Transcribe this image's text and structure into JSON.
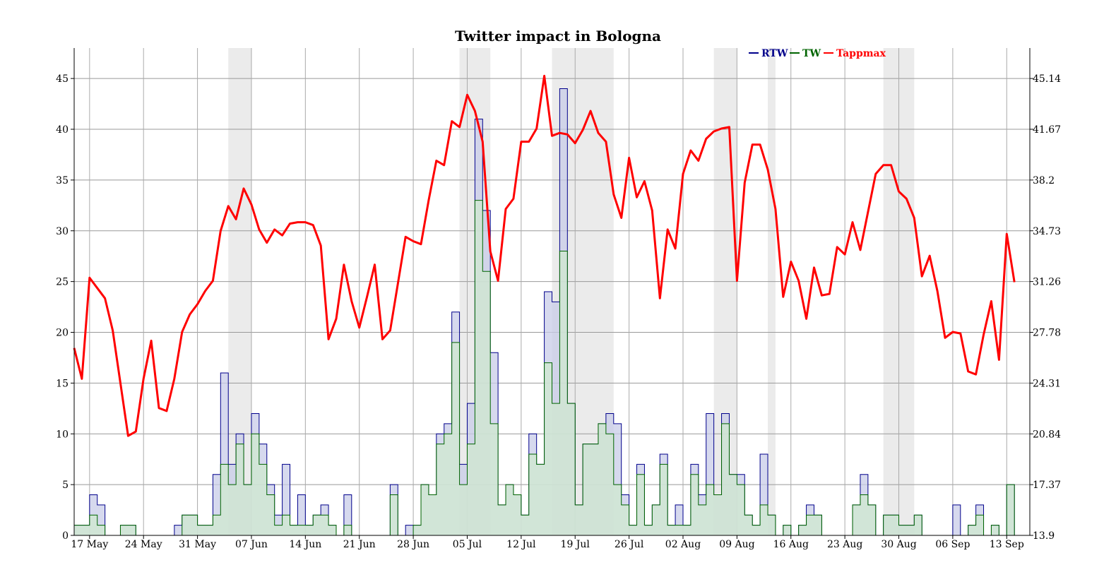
{
  "chart_data": {
    "type": "line",
    "title": "Twitter impact in Bologna",
    "x_tick_labels": [
      "17 May",
      "24 May",
      "31 May",
      "07 Jun",
      "14 Jun",
      "21 Jun",
      "28 Jun",
      "05 Jul",
      "12 Jul",
      "19 Jul",
      "26 Jul",
      "02 Aug",
      "09 Aug",
      "16 Aug",
      "23 Aug",
      "30 Aug",
      "06 Sep",
      "13 Sep"
    ],
    "x_start": "15 May",
    "y_left_ticks": [
      0,
      5,
      10,
      15,
      20,
      25,
      30,
      35,
      40,
      45
    ],
    "y_left_lim": [
      0,
      48
    ],
    "y_right_ticks": [
      "13.9",
      "17.37",
      "20.84",
      "24.31",
      "27.78",
      "31.26",
      "34.73",
      "38.2",
      "41.67",
      "45.14"
    ],
    "grid": true,
    "legend_position": "top-right",
    "shaded_day_ranges": [
      [
        20,
        23
      ],
      [
        50,
        54
      ],
      [
        62,
        70
      ],
      [
        83,
        86
      ],
      [
        90,
        91
      ],
      [
        105,
        109
      ]
    ],
    "series": [
      {
        "name": "RTW",
        "color": "#00008b",
        "values": [
          1,
          1,
          4,
          3,
          0,
          0,
          1,
          1,
          0,
          0,
          0,
          0,
          0,
          1,
          2,
          2,
          1,
          1,
          6,
          16,
          7,
          10,
          5,
          12,
          9,
          5,
          2,
          7,
          1,
          4,
          1,
          2,
          3,
          1,
          0,
          4,
          0,
          0,
          0,
          0,
          0,
          5,
          0,
          1,
          1,
          5,
          4,
          10,
          11,
          22,
          7,
          13,
          41,
          32,
          18,
          3,
          5,
          4,
          2,
          10,
          7,
          24,
          23,
          44,
          13,
          3,
          9,
          9,
          11,
          12,
          11,
          4,
          1,
          7,
          1,
          3,
          8,
          1,
          3,
          1,
          7,
          4,
          12,
          4,
          12,
          6,
          6,
          2,
          1,
          8,
          2,
          0,
          1,
          0,
          1,
          3,
          2,
          0,
          0,
          0,
          0,
          3,
          6,
          3,
          0,
          2,
          2,
          1,
          1,
          2,
          0,
          0,
          0,
          0,
          3,
          0,
          1,
          3,
          0,
          1,
          0,
          5
        ]
      },
      {
        "name": "TW",
        "color": "#006400",
        "values": [
          1,
          1,
          2,
          1,
          0,
          0,
          1,
          1,
          0,
          0,
          0,
          0,
          0,
          0,
          2,
          2,
          1,
          1,
          2,
          7,
          5,
          9,
          5,
          10,
          7,
          4,
          1,
          2,
          1,
          1,
          1,
          2,
          2,
          1,
          0,
          1,
          0,
          0,
          0,
          0,
          0,
          4,
          0,
          0,
          1,
          5,
          4,
          9,
          10,
          19,
          5,
          9,
          33,
          26,
          11,
          3,
          5,
          4,
          2,
          8,
          7,
          17,
          13,
          28,
          13,
          3,
          9,
          9,
          11,
          10,
          5,
          3,
          1,
          6,
          1,
          3,
          7,
          1,
          1,
          1,
          6,
          3,
          5,
          4,
          11,
          6,
          5,
          2,
          1,
          3,
          2,
          0,
          1,
          0,
          1,
          2,
          2,
          0,
          0,
          0,
          0,
          3,
          4,
          3,
          0,
          2,
          2,
          1,
          1,
          2,
          0,
          0,
          0,
          0,
          0,
          0,
          1,
          2,
          0,
          1,
          0,
          5
        ]
      },
      {
        "name": "Tappmax",
        "color": "#ff0000",
        "values": [
          26.7,
          24.6,
          31.5,
          30.8,
          30.1,
          27.9,
          24.3,
          20.7,
          21.0,
          24.6,
          27.2,
          22.6,
          22.4,
          24.6,
          27.8,
          29.0,
          29.7,
          30.6,
          31.3,
          34.7,
          36.4,
          35.5,
          37.6,
          36.5,
          34.8,
          33.9,
          34.8,
          34.4,
          35.2,
          35.3,
          35.3,
          35.1,
          33.7,
          27.3,
          28.7,
          32.4,
          29.9,
          28.1,
          30.2,
          32.4,
          27.3,
          27.9,
          31.1,
          34.3,
          34.0,
          33.8,
          36.8,
          39.5,
          39.2,
          42.2,
          41.8,
          44.0,
          42.9,
          40.8,
          33.3,
          31.3,
          36.2,
          36.9,
          40.8,
          40.8,
          41.7,
          45.3,
          41.2,
          41.4,
          41.3,
          40.7,
          41.6,
          42.9,
          41.4,
          40.8,
          37.2,
          35.6,
          39.7,
          37.0,
          38.1,
          36.1,
          30.1,
          34.8,
          33.5,
          38.6,
          40.2,
          39.5,
          41.0,
          41.5,
          41.7,
          41.8,
          31.3,
          38.0,
          40.6,
          40.6,
          38.9,
          36.2,
          30.2,
          32.6,
          31.3,
          28.7,
          32.2,
          30.3,
          30.4,
          33.6,
          33.1,
          35.3,
          33.4,
          36.0,
          38.6,
          39.2,
          39.2,
          37.4,
          36.9,
          35.6,
          31.6,
          33.0,
          30.6,
          27.4,
          27.8,
          27.7,
          25.1,
          24.9,
          27.6,
          29.9,
          25.9,
          34.5,
          31.2
        ]
      }
    ]
  }
}
